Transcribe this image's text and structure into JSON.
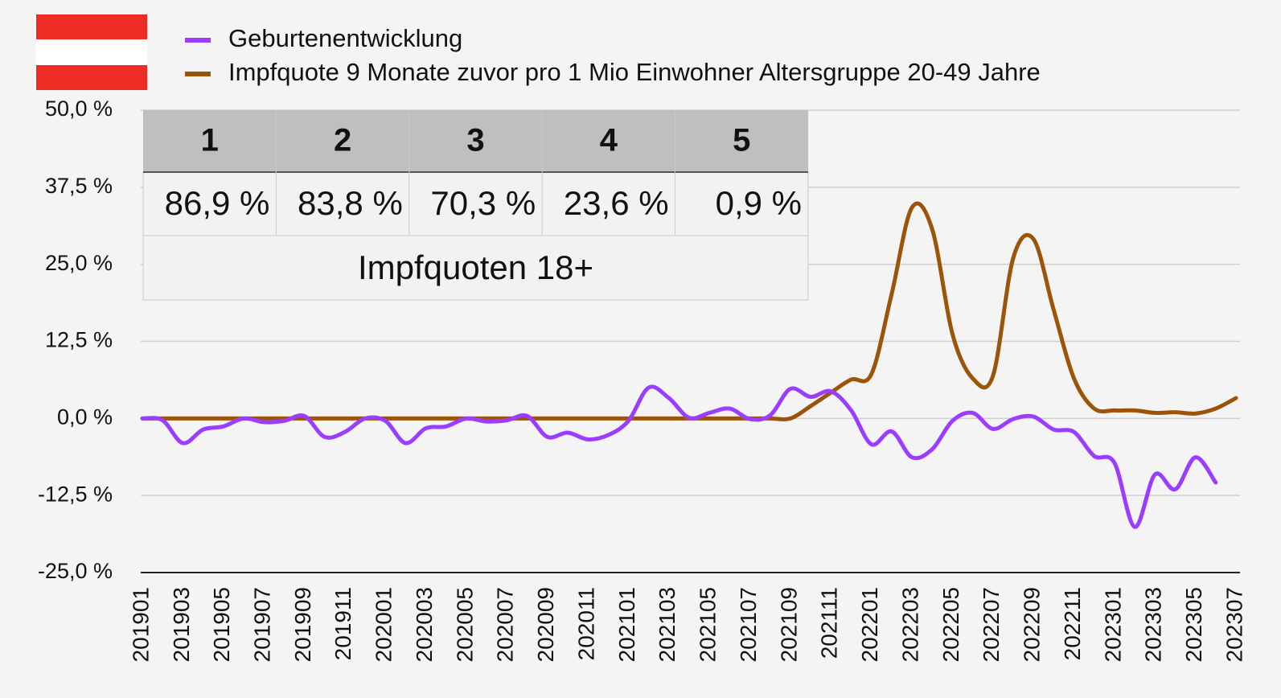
{
  "chart_data": {
    "type": "line",
    "categories": [
      "201901",
      null,
      "201903",
      null,
      "201905",
      null,
      "201907",
      null,
      "201909",
      null,
      "201911",
      null,
      "202001",
      null,
      "202003",
      null,
      "202005",
      null,
      "202007",
      null,
      "202009",
      null,
      "202011",
      null,
      "202101",
      null,
      "202103",
      null,
      "202105",
      null,
      "202107",
      null,
      "202109",
      null,
      "202111",
      null,
      "202201",
      null,
      "202203",
      null,
      "202205",
      null,
      "202207",
      null,
      "202209",
      null,
      "202211",
      null,
      "202301",
      null,
      "202303",
      null,
      "202305",
      null,
      "202307"
    ],
    "series": [
      {
        "name": "Geburtenentwicklung",
        "color": "#9b3dff",
        "values": [
          0,
          -0.3,
          -4,
          -1.8,
          -1.3,
          0,
          -0.6,
          -0.4,
          0.4,
          -3,
          -2.2,
          0,
          -0.4,
          -4,
          -1.6,
          -1.3,
          0,
          -0.5,
          -0.3,
          0.4,
          -3,
          -2.3,
          -3.4,
          -2.7,
          -0.4,
          5,
          3.3,
          0.1,
          0.9,
          1.6,
          -0.1,
          0.5,
          4.8,
          3.5,
          4.4,
          1.3,
          -4.2,
          -2.1,
          -6.3,
          -5,
          -0.4,
          0.9,
          -1.7,
          -0.1,
          0.3,
          -1.8,
          -2.2,
          -6.1,
          -7.2,
          -17.6,
          -9.1,
          -11.5,
          -6.3,
          -10.4,
          null
        ]
      },
      {
        "name": "Impfquote 9 Monate zuvor pro 1 Mio Einwohner Altersgruppe 20-49 Jahre",
        "color": "#9c5408",
        "values": [
          0,
          0,
          0,
          0,
          0,
          0,
          0,
          0,
          0,
          0,
          0,
          0,
          0,
          0,
          0,
          0,
          0,
          0,
          0,
          0,
          0,
          0,
          0,
          0,
          0,
          0,
          0,
          0,
          0,
          0,
          0,
          0,
          0,
          2,
          4.2,
          6.3,
          7.2,
          20.2,
          34.2,
          30.7,
          13.7,
          6.5,
          6.9,
          26,
          29.1,
          17.6,
          6.5,
          1.6,
          1.3,
          1.3,
          0.9,
          1,
          0.8,
          1.6,
          3.3
        ]
      }
    ],
    "ylim": [
      -25,
      50
    ],
    "yticks": [
      {
        "value": -25,
        "label": "-25,0 %"
      },
      {
        "value": -12.5,
        "label": "-12,5 %"
      },
      {
        "value": 0,
        "label": "0,0 %"
      },
      {
        "value": 12.5,
        "label": "12,5 %"
      },
      {
        "value": 25,
        "label": "25,0 %"
      },
      {
        "value": 37.5,
        "label": "37,5 %"
      },
      {
        "value": 50,
        "label": "50,0 %"
      }
    ],
    "grid": true,
    "inset_table": {
      "header": [
        "1",
        "2",
        "3",
        "4",
        "5"
      ],
      "values": [
        "86,9 %",
        "83,8 %",
        "70,3 %",
        "23,6 %",
        "0,9 %"
      ],
      "caption": "Impfquoten 18+"
    }
  }
}
